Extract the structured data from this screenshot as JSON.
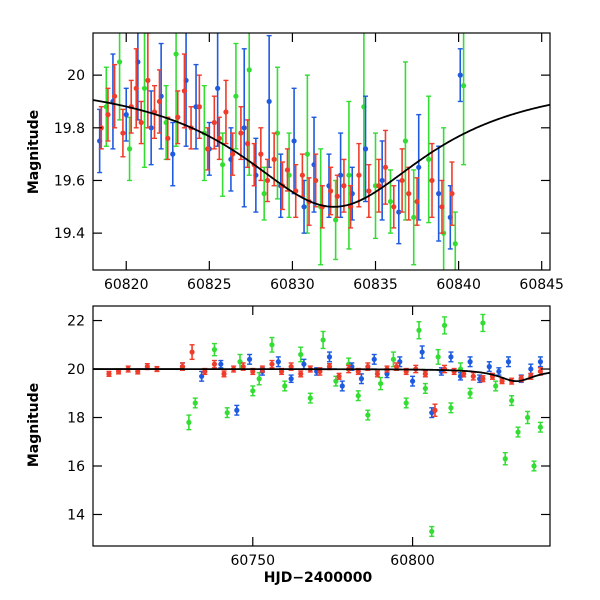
{
  "chart_data": [
    {
      "type": "scatter",
      "title": "",
      "xlabel": "",
      "ylabel": "Magnitude",
      "xlim": [
        60818,
        60845.5
      ],
      "ylim": [
        20.16,
        19.26
      ],
      "y_inverted": true,
      "xticks": [
        60820,
        60825,
        60830,
        60835,
        60840,
        60845
      ],
      "yticks": [
        19.4,
        19.6,
        19.8,
        20
      ],
      "xtick_labels": [
        "60820",
        "60825",
        "60830",
        "60835",
        "60840",
        "60845"
      ],
      "ytick_labels": [
        "19.4",
        "19.6",
        "19.8",
        "20"
      ],
      "colors": {
        "g": "#33dd33",
        "b": "#1e5be0",
        "r": "#f03c2a",
        "model": "#000000"
      },
      "model": {
        "t0": 60832.5,
        "tE": 7.0,
        "base": 20.0,
        "amp": 0.5
      },
      "series": [
        {
          "color_key": "g",
          "x": [
            60818.8,
            60819.6,
            60820.2,
            60821.1,
            60822.4,
            60823.0,
            60824.7,
            60825.8,
            60826.6,
            60827.4,
            60828.3,
            60829.1,
            60829.8,
            60830.9,
            60831.7,
            60832.6,
            60833.4,
            60834.3,
            60835.0,
            60835.9,
            60836.8,
            60837.3,
            60838.2,
            60839.1,
            60839.8,
            60840.3
          ],
          "y": [
            19.88,
            20.05,
            19.72,
            19.95,
            19.82,
            20.08,
            19.78,
            19.66,
            19.92,
            20.02,
            19.55,
            19.78,
            19.62,
            19.7,
            19.5,
            19.45,
            19.62,
            19.88,
            19.58,
            19.52,
            19.75,
            19.46,
            19.68,
            19.4,
            19.36,
            19.96
          ],
          "err": [
            0.15,
            0.22,
            0.12,
            0.3,
            0.14,
            0.35,
            0.18,
            0.12,
            0.2,
            0.4,
            0.1,
            0.25,
            0.16,
            0.3,
            0.22,
            0.15,
            0.28,
            0.35,
            0.2,
            0.12,
            0.3,
            0.18,
            0.24,
            0.4,
            0.12,
            0.3
          ]
        },
        {
          "color_key": "b",
          "x": [
            60818.4,
            60819.2,
            60820.0,
            60820.7,
            60821.5,
            60822.1,
            60822.8,
            60823.6,
            60824.2,
            60825.0,
            60825.5,
            60826.3,
            60827.1,
            60827.8,
            60828.6,
            60829.3,
            60830.1,
            60830.7,
            60831.3,
            60832.2,
            60832.9,
            60833.6,
            60834.4,
            60835.4,
            60836.4,
            60837.6,
            60838.8,
            60839.5,
            60840.1
          ],
          "y": [
            19.75,
            19.9,
            19.85,
            20.05,
            19.8,
            19.92,
            19.7,
            19.98,
            19.88,
            19.72,
            19.95,
            19.68,
            19.8,
            19.62,
            19.9,
            19.58,
            19.75,
            19.5,
            19.66,
            19.58,
            19.62,
            19.55,
            19.72,
            19.6,
            19.48,
            19.65,
            19.55,
            19.46,
            20.0
          ],
          "err": [
            0.12,
            0.18,
            0.1,
            0.22,
            0.14,
            0.2,
            0.12,
            0.25,
            0.16,
            0.1,
            0.22,
            0.12,
            0.3,
            0.14,
            0.25,
            0.12,
            0.2,
            0.1,
            0.18,
            0.12,
            0.16,
            0.1,
            0.2,
            0.15,
            0.12,
            0.2,
            0.18,
            0.12,
            0.1
          ]
        },
        {
          "color_key": "r",
          "x": [
            60818.5,
            60818.9,
            60819.3,
            60819.8,
            60820.3,
            60820.6,
            60820.9,
            60821.3,
            60821.7,
            60822.0,
            60822.5,
            60823.1,
            60823.5,
            60823.9,
            60824.4,
            60824.9,
            60825.3,
            60825.6,
            60826.0,
            60826.4,
            60826.9,
            60827.3,
            60827.7,
            60828.1,
            60828.5,
            60828.9,
            60829.4,
            60829.7,
            60830.2,
            60830.6,
            60831.0,
            60831.4,
            60831.8,
            60832.3,
            60832.7,
            60833.1,
            60833.5,
            60834.0,
            60834.6,
            60835.2,
            60835.6,
            60836.1,
            60836.6,
            60837.0,
            60837.5,
            60838.4,
            60839.0,
            60839.6
          ],
          "y": [
            19.8,
            19.85,
            19.92,
            19.78,
            19.88,
            19.95,
            19.82,
            19.98,
            19.86,
            19.9,
            19.76,
            19.84,
            19.94,
            19.8,
            19.88,
            19.72,
            19.82,
            19.76,
            19.86,
            19.7,
            19.78,
            19.74,
            19.66,
            19.7,
            19.6,
            19.68,
            19.58,
            19.64,
            19.56,
            19.62,
            19.52,
            19.6,
            19.5,
            19.56,
            19.54,
            19.58,
            19.5,
            19.62,
            19.56,
            19.58,
            19.65,
            19.5,
            19.6,
            19.55,
            19.52,
            19.6,
            19.5,
            19.55
          ],
          "err": [
            0.08,
            0.1,
            0.12,
            0.09,
            0.1,
            0.15,
            0.08,
            0.18,
            0.1,
            0.12,
            0.08,
            0.1,
            0.14,
            0.08,
            0.12,
            0.08,
            0.1,
            0.08,
            0.12,
            0.08,
            0.1,
            0.09,
            0.08,
            0.1,
            0.08,
            0.1,
            0.09,
            0.08,
            0.1,
            0.08,
            0.09,
            0.1,
            0.08,
            0.09,
            0.08,
            0.1,
            0.08,
            0.12,
            0.1,
            0.1,
            0.14,
            0.08,
            0.12,
            0.1,
            0.09,
            0.14,
            0.1,
            0.12
          ]
        }
      ]
    },
    {
      "type": "scatter",
      "title": "",
      "xlabel": "HJD−2400000",
      "ylabel": "Magnitude",
      "xlim": [
        60700,
        60843
      ],
      "ylim": [
        22.6,
        12.7
      ],
      "y_inverted": true,
      "xticks": [
        60750,
        60800
      ],
      "yticks": [
        14,
        16,
        18,
        20,
        22
      ],
      "xtick_labels": [
        "60750",
        "60800"
      ],
      "ytick_labels": [
        "14",
        "16",
        "18",
        "20",
        "22"
      ],
      "colors": {
        "g": "#33dd33",
        "b": "#1e5be0",
        "r": "#f03c2a",
        "model": "#000000"
      },
      "model": {
        "t0": 60832.5,
        "tE": 7.0,
        "base": 20.0,
        "amp": 0.5
      },
      "series": [
        {
          "color_key": "g",
          "x": [
            60730,
            60732,
            60738,
            60742,
            60746,
            60750,
            60752,
            60756,
            60760,
            60765,
            60768,
            60772,
            60776,
            60780,
            60783,
            60786,
            60790,
            60794,
            60798,
            60802,
            60804,
            60806,
            60808,
            60810,
            60812,
            60815,
            60818,
            60822,
            60826,
            60829,
            60831,
            60833,
            60836,
            60838,
            60840
          ],
          "y": [
            17.8,
            18.6,
            20.8,
            18.2,
            20.3,
            19.1,
            19.6,
            21.0,
            19.3,
            20.6,
            18.8,
            21.2,
            19.5,
            20.2,
            18.9,
            18.1,
            19.4,
            20.4,
            18.6,
            21.6,
            19.2,
            13.3,
            20.5,
            21.8,
            18.4,
            20.0,
            19.0,
            21.9,
            19.3,
            16.3,
            18.7,
            17.4,
            18.0,
            16.0,
            17.6
          ],
          "err": [
            0.3,
            0.2,
            0.25,
            0.2,
            0.3,
            0.2,
            0.25,
            0.3,
            0.2,
            0.3,
            0.2,
            0.35,
            0.2,
            0.25,
            0.2,
            0.2,
            0.25,
            0.3,
            0.2,
            0.35,
            0.2,
            0.2,
            0.3,
            0.35,
            0.2,
            0.25,
            0.2,
            0.35,
            0.2,
            0.25,
            0.2,
            0.2,
            0.25,
            0.2,
            0.2
          ]
        },
        {
          "color_key": "b",
          "x": [
            60728,
            60734,
            60740,
            60745,
            60749,
            60753,
            60758,
            60762,
            60766,
            60770,
            60774,
            60778,
            60781,
            60784,
            60788,
            60792,
            60796,
            60800,
            60803,
            60806,
            60809,
            60812,
            60815,
            60818,
            60821,
            60824,
            60827,
            60830,
            60834,
            60837,
            60840
          ],
          "y": [
            20.1,
            19.7,
            20.2,
            18.3,
            20.4,
            19.9,
            20.3,
            19.6,
            20.2,
            19.9,
            20.5,
            19.3,
            20.1,
            19.6,
            20.4,
            19.8,
            20.3,
            19.5,
            20.7,
            18.2,
            19.9,
            20.5,
            19.7,
            20.3,
            19.6,
            20.1,
            19.9,
            20.3,
            19.6,
            20.0,
            20.3
          ],
          "err": [
            0.15,
            0.2,
            0.15,
            0.2,
            0.2,
            0.15,
            0.2,
            0.15,
            0.2,
            0.15,
            0.2,
            0.2,
            0.15,
            0.2,
            0.2,
            0.15,
            0.2,
            0.2,
            0.25,
            0.2,
            0.15,
            0.2,
            0.15,
            0.2,
            0.15,
            0.2,
            0.15,
            0.2,
            0.15,
            0.2,
            0.2
          ]
        },
        {
          "color_key": "r",
          "x": [
            60705,
            60708,
            60711,
            60714,
            60717,
            60720,
            60728,
            60731,
            60735,
            60738,
            60741,
            60744,
            60747,
            60750,
            60753,
            60756,
            60759,
            60762,
            60765,
            60768,
            60771,
            60774,
            60777,
            60780,
            60783,
            60786,
            60789,
            60792,
            60795,
            60798,
            60801,
            60804,
            60807,
            60810,
            60813,
            60816,
            60819,
            60822,
            60825,
            60828,
            60831,
            60834,
            60837,
            60840
          ],
          "y": [
            19.8,
            19.9,
            20.0,
            19.9,
            20.1,
            20.0,
            20.1,
            20.7,
            19.9,
            20.2,
            19.8,
            20.0,
            20.1,
            19.9,
            20.0,
            20.2,
            19.9,
            20.1,
            19.8,
            20.0,
            19.9,
            20.1,
            19.7,
            20.0,
            19.9,
            20.1,
            19.8,
            20.0,
            20.1,
            19.9,
            20.0,
            19.8,
            18.3,
            20.0,
            19.9,
            19.8,
            19.7,
            19.6,
            19.7,
            19.5,
            19.5,
            19.6,
            19.7,
            19.9
          ],
          "err": [
            0.1,
            0.1,
            0.12,
            0.1,
            0.12,
            0.1,
            0.15,
            0.3,
            0.12,
            0.15,
            0.12,
            0.12,
            0.15,
            0.12,
            0.12,
            0.15,
            0.12,
            0.15,
            0.12,
            0.12,
            0.15,
            0.12,
            0.12,
            0.15,
            0.12,
            0.15,
            0.12,
            0.12,
            0.15,
            0.12,
            0.15,
            0.12,
            0.25,
            0.15,
            0.12,
            0.12,
            0.15,
            0.12,
            0.12,
            0.1,
            0.12,
            0.12,
            0.12,
            0.15
          ]
        }
      ]
    }
  ]
}
